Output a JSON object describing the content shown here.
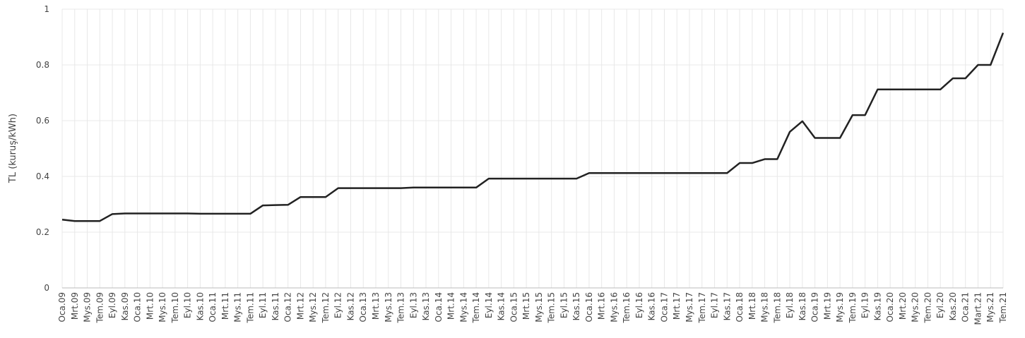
{
  "chart_data": {
    "type": "line",
    "y_label": "TL (kuruş/kWh)",
    "categories": [
      "Oca.09",
      "Mrt.09",
      "Mys.09",
      "Tem.09",
      "Eyl.09",
      "Kas.09",
      "Oca.10",
      "Mrt.10",
      "Mys.10",
      "Tem.10",
      "Eyl.10",
      "Kas.10",
      "Oca.11",
      "Mrt.11",
      "Mys.11",
      "Tem.11",
      "Eyl.11",
      "Kas.11",
      "Oca.12",
      "Mrt.12",
      "Mys.12",
      "Tem.12",
      "Eyl.12",
      "Kas.12",
      "Oca.13",
      "Mrt.13",
      "Mys.13",
      "Tem.13",
      "Eyl.13",
      "Kas.13",
      "Oca.14",
      "Mrt.14",
      "Mys.14",
      "Tem.14",
      "Eyl.14",
      "Kas.14",
      "Oca.15",
      "Mrt.15",
      "Mys.15",
      "Tem.15",
      "Eyl.15",
      "Kas.15",
      "Oca.16",
      "Mrt.16",
      "Mys.16",
      "Tem.16",
      "Eyl.16",
      "Kas.16",
      "Oca.17",
      "Mrt.17",
      "Mys.17",
      "Tem.17",
      "Eyl.17",
      "Kas.17",
      "Oca.18",
      "Mrt.18",
      "Mys.18",
      "Tem.18",
      "Eyl.18",
      "Kas.18",
      "Oca.19",
      "Mrt.19",
      "Mys.19",
      "Tem.19",
      "Eyl.19",
      "Kas.19",
      "Oca.20",
      "Mrt.20",
      "Mys.20",
      "Tem.20",
      "Eyl.20",
      "Kas.20",
      "Oca.21",
      "Mart.21",
      "Mys.21",
      "Tem.21"
    ],
    "values": [
      0.245,
      0.24,
      0.24,
      0.24,
      0.265,
      0.267,
      0.267,
      0.267,
      0.267,
      0.267,
      0.267,
      0.266,
      0.266,
      0.266,
      0.266,
      0.266,
      0.296,
      0.297,
      0.298,
      0.326,
      0.326,
      0.326,
      0.358,
      0.358,
      0.358,
      0.358,
      0.358,
      0.358,
      0.36,
      0.36,
      0.36,
      0.36,
      0.36,
      0.36,
      0.392,
      0.392,
      0.392,
      0.392,
      0.392,
      0.392,
      0.392,
      0.392,
      0.412,
      0.412,
      0.412,
      0.412,
      0.412,
      0.412,
      0.412,
      0.412,
      0.412,
      0.412,
      0.412,
      0.412,
      0.448,
      0.448,
      0.462,
      0.462,
      0.56,
      0.598,
      0.538,
      0.538,
      0.538,
      0.62,
      0.62,
      0.712,
      0.712,
      0.712,
      0.712,
      0.712,
      0.712,
      0.752,
      0.752,
      0.8,
      0.8,
      0.915
    ],
    "color": "#222222",
    "ylim": [
      0,
      1
    ],
    "yticks": [
      0,
      0.2,
      0.4,
      0.6,
      0.8,
      1
    ],
    "grid": true
  }
}
